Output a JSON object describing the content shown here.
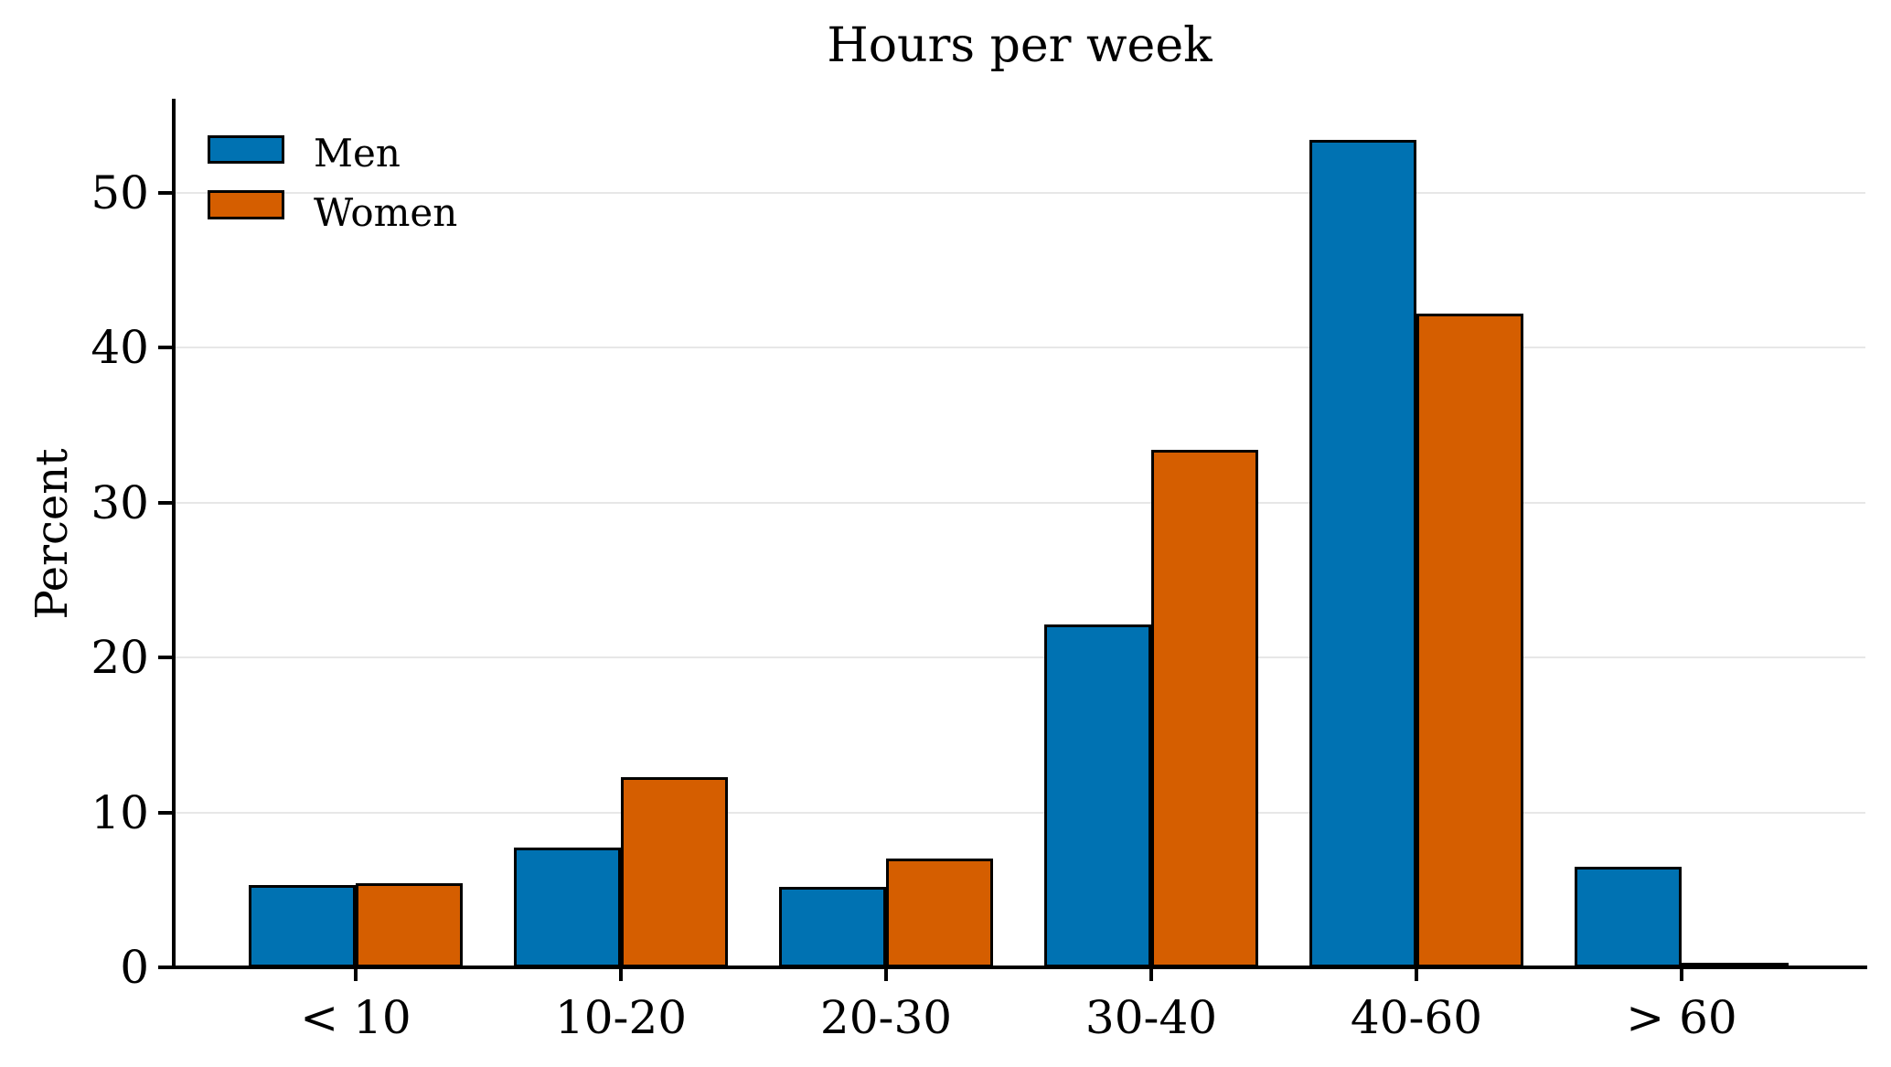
{
  "figure": {
    "background_color": "#ffffff",
    "text_color": "#000000"
  },
  "chart_data": {
    "type": "bar",
    "title": "Hours per week",
    "xlabel": "",
    "ylabel": "Percent",
    "categories": [
      "< 10",
      "10-20",
      "20-30",
      "30-40",
      "40-60",
      "> 60"
    ],
    "series": [
      {
        "name": "Men",
        "color": "#0072B2",
        "values": [
          5.3,
          7.7,
          5.2,
          22.1,
          53.4,
          6.5
        ]
      },
      {
        "name": "Women",
        "color": "#D55E00",
        "values": [
          5.4,
          12.3,
          7.0,
          33.4,
          42.2,
          0.1
        ]
      }
    ],
    "bar_edge_color": "#000000",
    "yticks": [
      "0",
      "10",
      "20",
      "30",
      "40",
      "50"
    ],
    "ytick_values": [
      0,
      10,
      20,
      30,
      40,
      50
    ],
    "ylim": [
      0,
      56
    ],
    "grid": "horizontal",
    "gridline_color": "#e7e7e7",
    "legend_position": "upper-left",
    "legend_frame": false
  }
}
